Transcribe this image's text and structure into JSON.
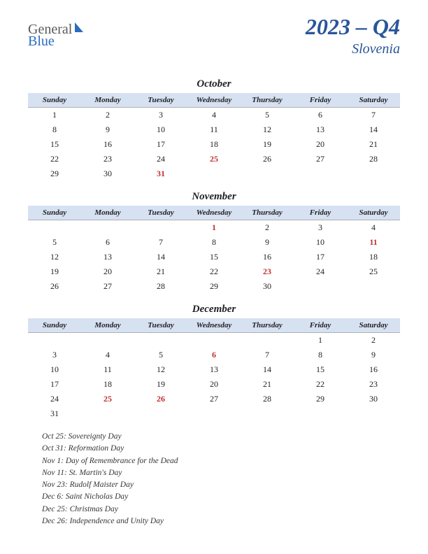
{
  "logo": {
    "part1": "General",
    "part2": "Blue"
  },
  "title": "2023 – Q4",
  "country": "Slovenia",
  "colors": {
    "header_bg": "#d6e1f2",
    "title_color": "#2a5599",
    "holiday_color": "#c03030",
    "text_color": "#222222",
    "logo_gray": "#5a5a5a",
    "logo_blue": "#2a6dbf"
  },
  "day_headers": [
    "Sunday",
    "Monday",
    "Tuesday",
    "Wednesday",
    "Thursday",
    "Friday",
    "Saturday"
  ],
  "months": [
    {
      "name": "October",
      "weeks": [
        [
          {
            "d": "1"
          },
          {
            "d": "2"
          },
          {
            "d": "3"
          },
          {
            "d": "4"
          },
          {
            "d": "5"
          },
          {
            "d": "6"
          },
          {
            "d": "7"
          }
        ],
        [
          {
            "d": "8"
          },
          {
            "d": "9"
          },
          {
            "d": "10"
          },
          {
            "d": "11"
          },
          {
            "d": "12"
          },
          {
            "d": "13"
          },
          {
            "d": "14"
          }
        ],
        [
          {
            "d": "15"
          },
          {
            "d": "16"
          },
          {
            "d": "17"
          },
          {
            "d": "18"
          },
          {
            "d": "19"
          },
          {
            "d": "20"
          },
          {
            "d": "21"
          }
        ],
        [
          {
            "d": "22"
          },
          {
            "d": "23"
          },
          {
            "d": "24"
          },
          {
            "d": "25",
            "h": true
          },
          {
            "d": "26"
          },
          {
            "d": "27"
          },
          {
            "d": "28"
          }
        ],
        [
          {
            "d": "29"
          },
          {
            "d": "30"
          },
          {
            "d": "31",
            "h": true
          },
          {
            "d": ""
          },
          {
            "d": ""
          },
          {
            "d": ""
          },
          {
            "d": ""
          }
        ]
      ]
    },
    {
      "name": "November",
      "weeks": [
        [
          {
            "d": ""
          },
          {
            "d": ""
          },
          {
            "d": ""
          },
          {
            "d": "1",
            "h": true
          },
          {
            "d": "2"
          },
          {
            "d": "3"
          },
          {
            "d": "4"
          }
        ],
        [
          {
            "d": "5"
          },
          {
            "d": "6"
          },
          {
            "d": "7"
          },
          {
            "d": "8"
          },
          {
            "d": "9"
          },
          {
            "d": "10"
          },
          {
            "d": "11",
            "h": true
          }
        ],
        [
          {
            "d": "12"
          },
          {
            "d": "13"
          },
          {
            "d": "14"
          },
          {
            "d": "15"
          },
          {
            "d": "16"
          },
          {
            "d": "17"
          },
          {
            "d": "18"
          }
        ],
        [
          {
            "d": "19"
          },
          {
            "d": "20"
          },
          {
            "d": "21"
          },
          {
            "d": "22"
          },
          {
            "d": "23",
            "h": true
          },
          {
            "d": "24"
          },
          {
            "d": "25"
          }
        ],
        [
          {
            "d": "26"
          },
          {
            "d": "27"
          },
          {
            "d": "28"
          },
          {
            "d": "29"
          },
          {
            "d": "30"
          },
          {
            "d": ""
          },
          {
            "d": ""
          }
        ]
      ]
    },
    {
      "name": "December",
      "weeks": [
        [
          {
            "d": ""
          },
          {
            "d": ""
          },
          {
            "d": ""
          },
          {
            "d": ""
          },
          {
            "d": ""
          },
          {
            "d": "1"
          },
          {
            "d": "2"
          }
        ],
        [
          {
            "d": "3"
          },
          {
            "d": "4"
          },
          {
            "d": "5"
          },
          {
            "d": "6",
            "h": true
          },
          {
            "d": "7"
          },
          {
            "d": "8"
          },
          {
            "d": "9"
          }
        ],
        [
          {
            "d": "10"
          },
          {
            "d": "11"
          },
          {
            "d": "12"
          },
          {
            "d": "13"
          },
          {
            "d": "14"
          },
          {
            "d": "15"
          },
          {
            "d": "16"
          }
        ],
        [
          {
            "d": "17"
          },
          {
            "d": "18"
          },
          {
            "d": "19"
          },
          {
            "d": "20"
          },
          {
            "d": "21"
          },
          {
            "d": "22"
          },
          {
            "d": "23"
          }
        ],
        [
          {
            "d": "24"
          },
          {
            "d": "25",
            "h": true
          },
          {
            "d": "26",
            "h": true
          },
          {
            "d": "27"
          },
          {
            "d": "28"
          },
          {
            "d": "29"
          },
          {
            "d": "30"
          }
        ],
        [
          {
            "d": "31"
          },
          {
            "d": ""
          },
          {
            "d": ""
          },
          {
            "d": ""
          },
          {
            "d": ""
          },
          {
            "d": ""
          },
          {
            "d": ""
          }
        ]
      ]
    }
  ],
  "holiday_list": [
    "Oct 25: Sovereignty Day",
    "Oct 31: Reformation Day",
    "Nov 1: Day of Remembrance for the Dead",
    "Nov 11: St. Martin's Day",
    "Nov 23: Rudolf Maister Day",
    "Dec 6: Saint Nicholas Day",
    "Dec 25: Christmas Day",
    "Dec 26: Independence and Unity Day"
  ]
}
